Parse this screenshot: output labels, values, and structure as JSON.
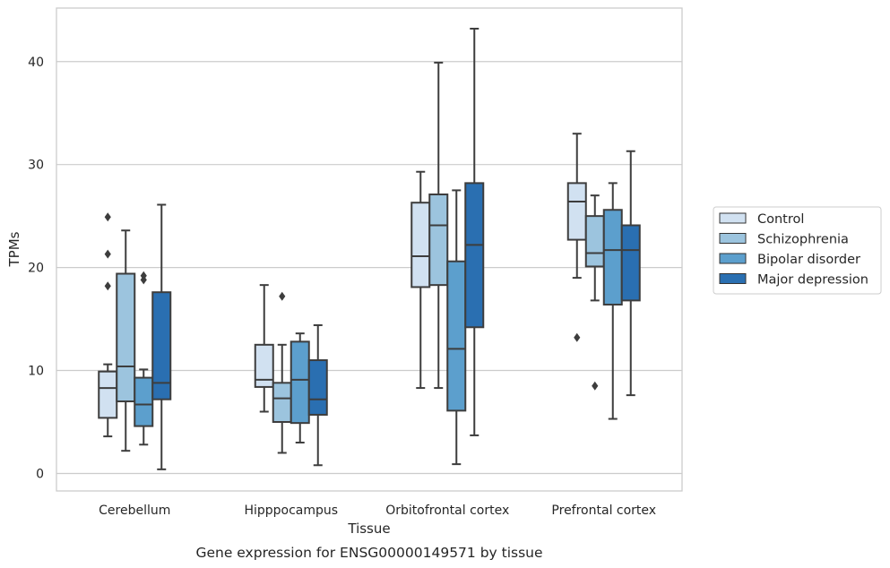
{
  "chart_data": {
    "type": "box",
    "caption": "Gene expression for ENSG00000149571 by tissue",
    "xlabel": "Tissue",
    "ylabel": "TPMs",
    "ylim": [
      -1.7,
      45.2
    ],
    "yticks": [
      0,
      10,
      20,
      30,
      40
    ],
    "grid": "horizontal",
    "legend_position": "right",
    "categories": [
      "Cerebellum",
      "Hipppocampus",
      "Orbitofrontal cortex",
      "Prefrontal cortex"
    ],
    "series": [
      {
        "name": "Control",
        "color": "#d1e1f1",
        "boxes": [
          {
            "whisker_low": 3.6,
            "q1": 5.4,
            "median": 8.3,
            "q3": 9.9,
            "whisker_high": 10.6,
            "outliers": [
              18.2,
              21.3,
              24.9
            ]
          },
          {
            "whisker_low": 6.0,
            "q1": 8.4,
            "median": 9.1,
            "q3": 12.5,
            "whisker_high": 18.3,
            "outliers": []
          },
          {
            "whisker_low": 8.3,
            "q1": 18.1,
            "median": 21.1,
            "q3": 26.3,
            "whisker_high": 29.3,
            "outliers": []
          },
          {
            "whisker_low": 19.0,
            "q1": 22.7,
            "median": 26.4,
            "q3": 28.2,
            "whisker_high": 33.0,
            "outliers": [
              13.2
            ]
          }
        ]
      },
      {
        "name": "Schizophrenia",
        "color": "#9cc4de",
        "boxes": [
          {
            "whisker_low": 2.2,
            "q1": 7.0,
            "median": 10.4,
            "q3": 19.4,
            "whisker_high": 23.6,
            "outliers": []
          },
          {
            "whisker_low": 2.0,
            "q1": 5.0,
            "median": 7.3,
            "q3": 8.8,
            "whisker_high": 12.5,
            "outliers": [
              17.2
            ]
          },
          {
            "whisker_low": 8.3,
            "q1": 18.3,
            "median": 24.1,
            "q3": 27.1,
            "whisker_high": 39.9,
            "outliers": []
          },
          {
            "whisker_low": 16.8,
            "q1": 20.1,
            "median": 21.4,
            "q3": 25.0,
            "whisker_high": 27.0,
            "outliers": [
              8.5
            ]
          }
        ]
      },
      {
        "name": "Bipolar disorder",
        "color": "#5c9fcd",
        "boxes": [
          {
            "whisker_low": 2.8,
            "q1": 4.6,
            "median": 6.7,
            "q3": 9.3,
            "whisker_high": 10.1,
            "outliers": [
              18.8,
              19.2
            ]
          },
          {
            "whisker_low": 3.0,
            "q1": 4.9,
            "median": 9.1,
            "q3": 12.8,
            "whisker_high": 13.6,
            "outliers": []
          },
          {
            "whisker_low": 0.9,
            "q1": 6.1,
            "median": 12.1,
            "q3": 20.6,
            "whisker_high": 27.5,
            "outliers": []
          },
          {
            "whisker_low": 5.3,
            "q1": 16.4,
            "median": 21.7,
            "q3": 25.6,
            "whisker_high": 28.2,
            "outliers": []
          }
        ]
      },
      {
        "name": "Major depression",
        "color": "#2a6fb1",
        "boxes": [
          {
            "whisker_low": 0.4,
            "q1": 7.2,
            "median": 8.8,
            "q3": 17.6,
            "whisker_high": 26.1,
            "outliers": []
          },
          {
            "whisker_low": 0.8,
            "q1": 5.7,
            "median": 7.2,
            "q3": 11.0,
            "whisker_high": 14.4,
            "outliers": []
          },
          {
            "whisker_low": 3.7,
            "q1": 14.2,
            "median": 22.2,
            "q3": 28.2,
            "whisker_high": 43.2,
            "outliers": []
          },
          {
            "whisker_low": 7.6,
            "q1": 16.8,
            "median": 21.7,
            "q3": 24.1,
            "whisker_high": 31.3,
            "outliers": []
          }
        ]
      }
    ]
  }
}
